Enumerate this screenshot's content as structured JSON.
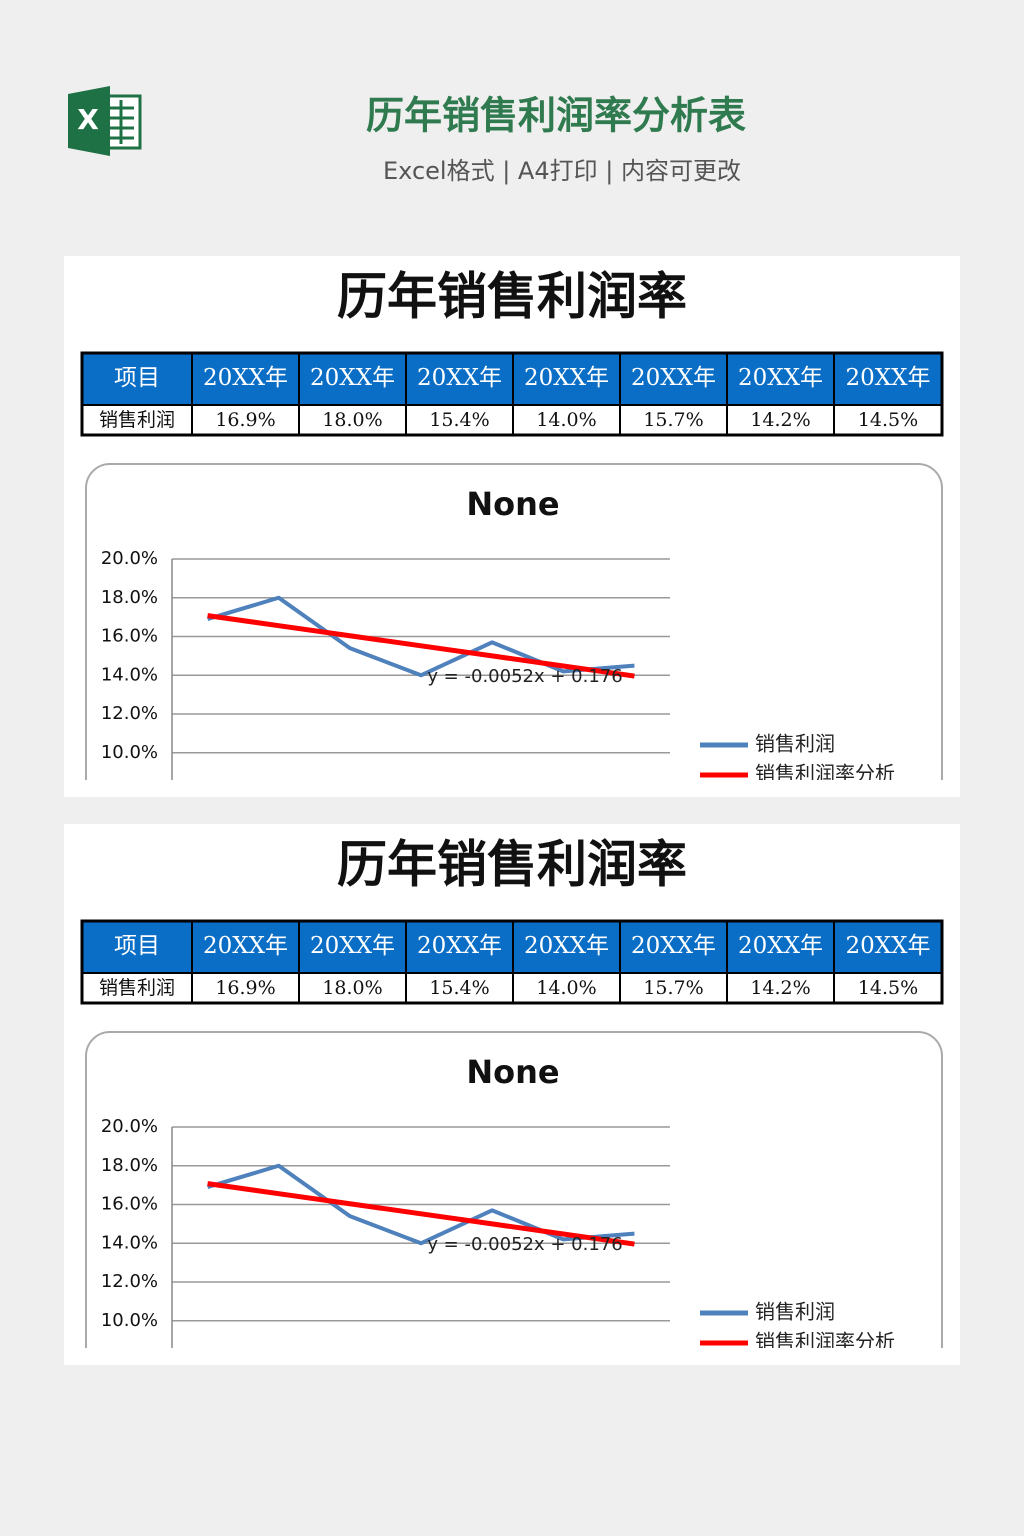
{
  "header": {
    "title": "历年销售利润率分析表",
    "subtitle": "Excel格式 | A4打印 | 内容可更改"
  },
  "sheets": [
    {
      "title": "历年销售利润率",
      "table": {
        "header": [
          "项目",
          "20XX年",
          "20XX年",
          "20XX年",
          "20XX年",
          "20XX年",
          "20XX年",
          "20XX年"
        ],
        "rows": [
          [
            "销售利润",
            "16.9%",
            "18.0%",
            "15.4%",
            "14.0%",
            "15.7%",
            "14.2%",
            "14.5%"
          ]
        ]
      }
    },
    {
      "title": "历年销售利润率",
      "table": {
        "header": [
          "项目",
          "20XX年",
          "20XX年",
          "20XX年",
          "20XX年",
          "20XX年",
          "20XX年",
          "20XX年"
        ],
        "rows": [
          [
            "销售利润",
            "16.9%",
            "18.0%",
            "15.4%",
            "14.0%",
            "15.7%",
            "14.2%",
            "14.5%"
          ]
        ]
      }
    }
  ],
  "chart_data": [
    {
      "type": "line",
      "title": "None",
      "categories": [
        null,
        null,
        null,
        null,
        null,
        null,
        null
      ],
      "series": [
        {
          "name": "销售利润",
          "color": "#4f81bd",
          "values": [
            16.9,
            18.0,
            15.4,
            14.0,
            15.7,
            14.2,
            14.5
          ]
        },
        {
          "name": "销售利润率分析",
          "color": "#ff0000",
          "values": [
            17.08,
            16.56,
            16.04,
            15.52,
            15.0,
            14.48,
            13.96
          ]
        }
      ],
      "annotations": [
        "y = -0.0052x + 0.176"
      ],
      "ylim": [
        8.7,
        20
      ],
      "yticks": [
        {
          "value": 10,
          "label": "10.0%"
        },
        {
          "value": 12,
          "label": "12.0%"
        },
        {
          "value": 14,
          "label": "14.0%"
        },
        {
          "value": 16,
          "label": "16.0%"
        },
        {
          "value": 18,
          "label": "18.0%"
        },
        {
          "value": 20,
          "label": "20.0%"
        }
      ],
      "grid": true,
      "legend": "right"
    },
    {
      "type": "line",
      "title": "None",
      "categories": [
        null,
        null,
        null,
        null,
        null,
        null,
        null
      ],
      "series": [
        {
          "name": "销售利润",
          "color": "#4f81bd",
          "values": [
            16.9,
            18.0,
            15.4,
            14.0,
            15.7,
            14.2,
            14.5
          ]
        },
        {
          "name": "销售利润率分析",
          "color": "#ff0000",
          "values": [
            17.08,
            16.56,
            16.04,
            15.52,
            15.0,
            14.48,
            13.96
          ]
        }
      ],
      "annotations": [
        "y = -0.0052x + 0.176"
      ],
      "ylim": [
        8.7,
        20
      ],
      "yticks": [
        {
          "value": 10,
          "label": "10.0%"
        },
        {
          "value": 12,
          "label": "12.0%"
        },
        {
          "value": 14,
          "label": "14.0%"
        },
        {
          "value": 16,
          "label": "16.0%"
        },
        {
          "value": 18,
          "label": "18.0%"
        },
        {
          "value": 20,
          "label": "20.0%"
        }
      ],
      "grid": true,
      "legend": "right"
    }
  ]
}
